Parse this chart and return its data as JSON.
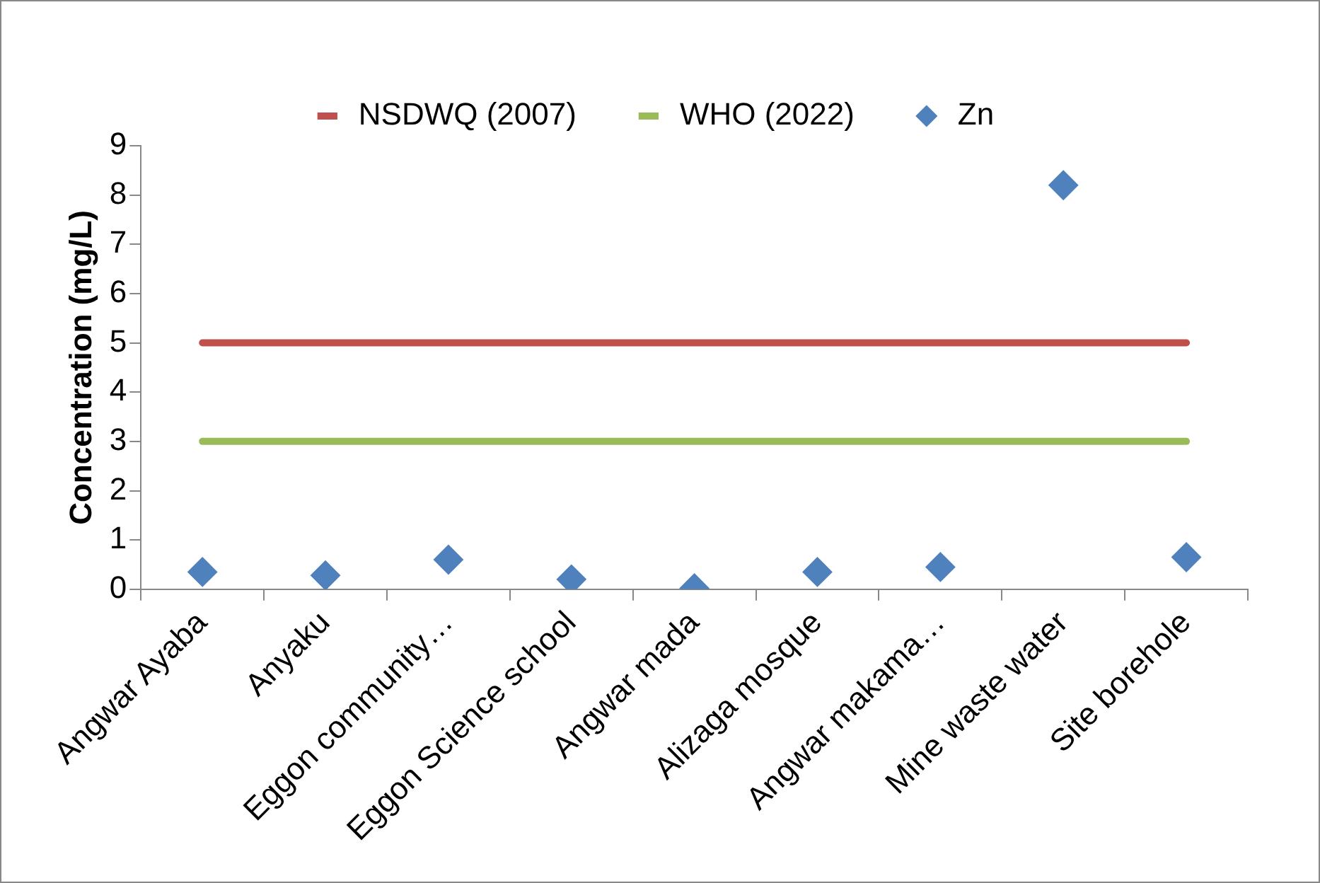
{
  "chart_data": {
    "type": "scatter",
    "ylabel": "Concentration (mg/L)",
    "categories": [
      "Angwar Ayaba",
      "Anyaku",
      "Eggon community…",
      "Eggon Science school",
      "Angwar mada",
      "Alizaga mosque",
      "Angwar makama…",
      "Mine waste water",
      "Site borehole"
    ],
    "series": [
      {
        "name": "NSDWQ (2007)",
        "type": "line",
        "color": "#c0504d",
        "values": [
          5,
          5,
          5,
          5,
          5,
          5,
          5,
          5,
          5
        ],
        "marker": "none"
      },
      {
        "name": "WHO (2022)",
        "type": "line",
        "color": "#9bbb59",
        "values": [
          3,
          3,
          3,
          3,
          3,
          3,
          3,
          3,
          3
        ],
        "marker": "none"
      },
      {
        "name": "Zn",
        "color": "#4f81bd",
        "values": [
          0.35,
          0.28,
          0.6,
          0.2,
          0.02,
          0.35,
          0.45,
          8.2,
          0.65
        ],
        "marker": "diamond"
      }
    ],
    "ylim": [
      0,
      9
    ],
    "yticks": [
      0,
      1,
      2,
      3,
      4,
      5,
      6,
      7,
      8,
      9
    ],
    "grid": false,
    "legend": "top"
  }
}
